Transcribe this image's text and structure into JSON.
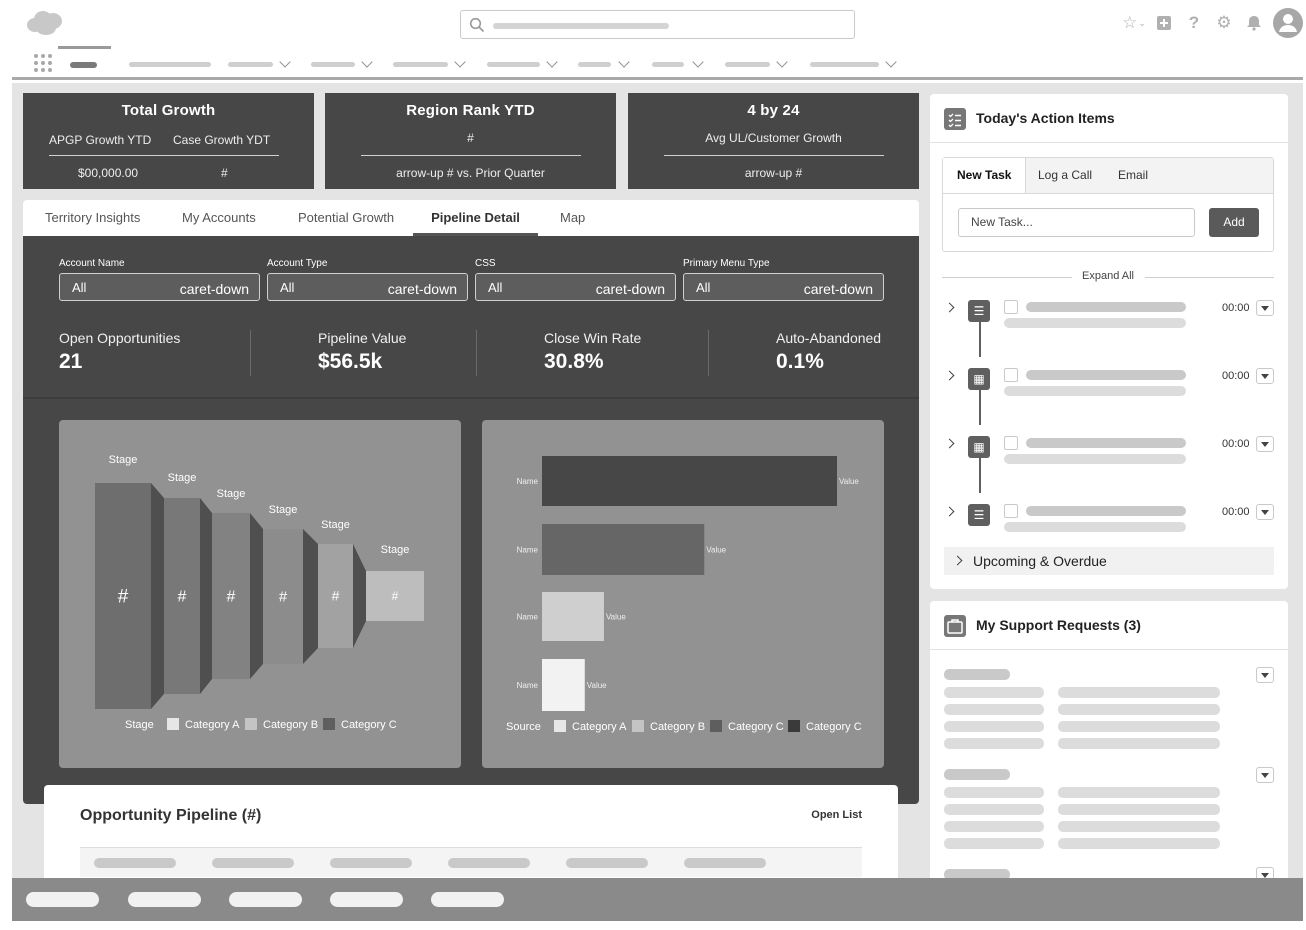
{
  "colors": {
    "panel_dark": "#474747",
    "chart_bg": "#929292",
    "page_bg": "#e4e4e4",
    "footer": "#8a8a8a"
  },
  "header": {
    "logo_icon": "cloud-logo-icon",
    "search_icon": "search-icon",
    "icons": [
      "star-icon",
      "add-icon",
      "help-icon",
      "gear-icon",
      "bell-icon",
      "avatar-icon"
    ]
  },
  "metrics": [
    {
      "title": "Total Growth",
      "sub_left": "APGP Growth YTD",
      "sub_right": "Case Growth YDT",
      "val_left": "$00,000.00",
      "val_right": "#"
    },
    {
      "title": "Region Rank YTD",
      "sub": "#",
      "val": "arrow-up # vs. Prior Quarter"
    },
    {
      "title": "4 by 24",
      "sub": "Avg UL/Customer Growth",
      "val": "arrow-up #"
    }
  ],
  "tabs": [
    "Territory Insights",
    "My Accounts",
    "Potential Growth",
    "Pipeline Detail",
    "Map"
  ],
  "active_tab": "Pipeline Detail",
  "filters": [
    {
      "label": "Account Name",
      "value": "All",
      "caret": "caret-down"
    },
    {
      "label": "Account Type",
      "value": "All",
      "caret": "caret-down"
    },
    {
      "label": "CSS",
      "value": "All",
      "caret": "caret-down"
    },
    {
      "label": "Primary Menu Type",
      "value": "All",
      "caret": "caret-down"
    }
  ],
  "kpis": [
    {
      "label": "Open Opportunities",
      "value": "21"
    },
    {
      "label": "Pipeline Value",
      "value": "$56.5k"
    },
    {
      "label": "Close Win Rate",
      "value": "30.8%"
    },
    {
      "label": "Auto-Abandoned",
      "value": "0.1%"
    }
  ],
  "chart_data": [
    {
      "type": "funnel",
      "stage_labels": [
        "Stage",
        "Stage",
        "Stage",
        "Stage",
        "Stage",
        "Stage"
      ],
      "value_labels": [
        "#",
        "#",
        "#",
        "#",
        "#",
        "#"
      ],
      "legend_title": "Stage",
      "legend": [
        "Category A",
        "Category B",
        "Category C"
      ],
      "colors": [
        "#6e6e6e",
        "#787878",
        "#828282",
        "#8c8c8c",
        "#a2a2a2",
        "#bdbdbd"
      ]
    },
    {
      "type": "bar",
      "orientation": "horizontal",
      "categories": [
        "Name",
        "Name",
        "Name",
        "Name"
      ],
      "value_labels": [
        "Value",
        "Value",
        "Value",
        "Value"
      ],
      "values": [
        100,
        55,
        21,
        14.5
      ],
      "colors": [
        "#474747",
        "#666666",
        "#cfcfcf",
        "#f2f2f2"
      ],
      "legend_title": "Source",
      "legend": [
        "Category A",
        "Category B",
        "Category C",
        "Category C"
      ],
      "legend_colors": [
        "#e6e6e6",
        "#c4c4c4",
        "#5e5e5e",
        "#3a3a3a"
      ]
    }
  ],
  "opportunity": {
    "title": "Opportunity Pipeline (#)",
    "link": "Open List"
  },
  "action_items": {
    "title": "Today's Action Items",
    "tabs": [
      "New Task",
      "Log a Call",
      "Email"
    ],
    "input_placeholder": "New Task...",
    "add_label": "Add",
    "expand_all": "Expand All",
    "tasks": [
      {
        "icon": "task-list-icon",
        "time": "00:00"
      },
      {
        "icon": "calendar-icon",
        "time": "00:00"
      },
      {
        "icon": "calendar-icon",
        "time": "00:00"
      },
      {
        "icon": "task-list-icon",
        "time": "00:00"
      }
    ],
    "upcoming": "Upcoming & Overdue"
  },
  "support": {
    "title": "My Support Requests (3)"
  }
}
